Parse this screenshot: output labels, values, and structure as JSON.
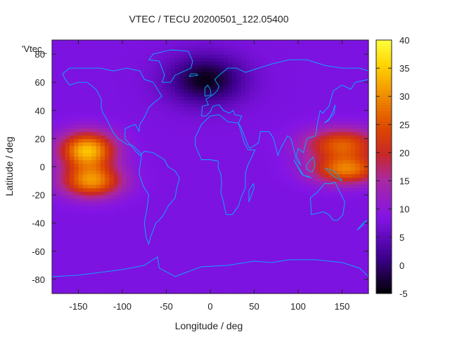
{
  "chart_data": {
    "type": "heatmap",
    "title": "VTEC / TECU 20200501_122.05400",
    "xlabel": "Longitude / deg",
    "ylabel": "Latitude / deg",
    "legend_key_text": "'Vtec_",
    "xlim": [
      -180,
      180
    ],
    "ylim": [
      -90,
      90
    ],
    "xticks": [
      -150,
      -100,
      -50,
      0,
      50,
      100,
      150
    ],
    "yticks": [
      -80,
      -60,
      -40,
      -20,
      0,
      20,
      40,
      60,
      80
    ],
    "colorbar": {
      "range": [
        -5,
        40
      ],
      "ticks": [
        -5,
        0,
        5,
        10,
        15,
        20,
        25,
        30,
        35,
        40
      ],
      "palette": "black-purple-red-orange-yellow"
    },
    "background_value": 8,
    "anomalies": [
      {
        "description": "equatorial anomaly north crest (Pacific, west)",
        "lon": -140,
        "lat": 12,
        "peak": 34,
        "sigma_lon": 22,
        "sigma_lat": 9
      },
      {
        "description": "equatorial anomaly south crest (Pacific, west)",
        "lon": -135,
        "lat": -10,
        "peak": 30,
        "sigma_lon": 24,
        "sigma_lat": 8
      },
      {
        "description": "equatorial anomaly north crest (Pacific, east Asia)",
        "lon": 150,
        "lat": 16,
        "peak": 26,
        "sigma_lon": 30,
        "sigma_lat": 8
      },
      {
        "description": "equatorial anomaly south crest (Pacific, Australia)",
        "lon": 155,
        "lat": -2,
        "peak": 28,
        "sigma_lon": 28,
        "sigma_lat": 7
      },
      {
        "description": "low north polar region",
        "lon": -5,
        "lat": 62,
        "peak": -4,
        "sigma_lon": 30,
        "sigma_lat": 12
      }
    ],
    "grid": false,
    "overlay": "coastlines (cyan)"
  }
}
